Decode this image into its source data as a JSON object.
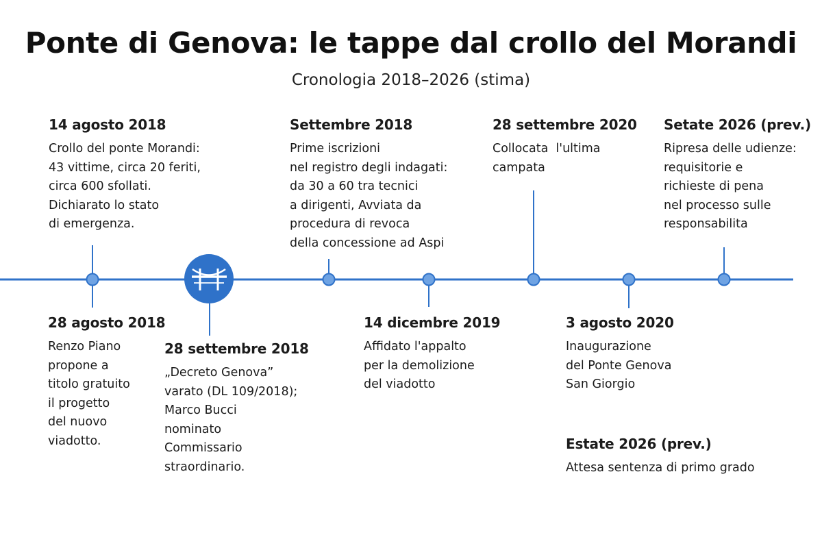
{
  "header": {
    "title": "Ponte di Genova: le tappe dal crollo del Morandi",
    "subtitle": "Cronologia 2018–2026 (stima)"
  },
  "colors": {
    "accent": "#2f72c9",
    "text": "#1b1b1b"
  },
  "bridge_icon": "bridge-icon",
  "events": [
    {
      "date": "14 agosto 2018",
      "description": "Crollo del ponte Morandi:\n43 vittime, circa 20 feriti,\ncirca 600 sfollati.\nDichiarato lo stato\ndi emergenza."
    },
    {
      "date": "28 agosto 2018",
      "description": "Renzo Piano\npropone a\ntitolo gratuito\nil progetto\ndel nuovo\nviadotto."
    },
    {
      "date": "28 settembre 2018",
      "description": "„Decreto Genova”\nvarato (DL 109/2018);\nMarco Bucci\nnominato\nCommissario\nstraordinario."
    },
    {
      "date": "Settembre 2018",
      "description": "Prime iscrizioni\nnel registro degli indagati:\nda 30 a 60 tra tecnici\na dirigenti, Avviata da\nprocedura di revoca\ndella concessione ad Aspi"
    },
    {
      "date": "14 dicembre 2019",
      "description": "Affidato l'appalto\nper la demolizione\ndel viadotto"
    },
    {
      "date": "28 settembre 2020",
      "description": "Collocata  l'ultima\ncampata"
    },
    {
      "date": "3 agosto 2020",
      "description": "Inaugurazione\ndel Ponte Genova\nSan Giorgio"
    },
    {
      "date": "Setate 2026 (prev.)",
      "description": "Ripresa delle udienze:\nrequisitorie e\nrichieste di pena\nnel processo sulle\nresponsabilita"
    },
    {
      "date": "Estate 2026 (prev.)",
      "description": "Attesa sentenza di primo grado"
    }
  ]
}
